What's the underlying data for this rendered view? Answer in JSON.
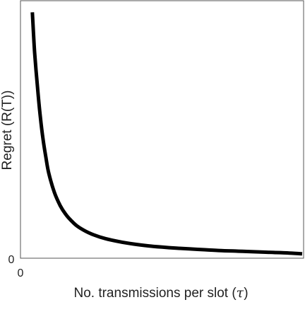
{
  "chart_data": {
    "type": "line",
    "xlabel_prefix": "No. transmissions per slot (",
    "xlabel_symbol": "τ",
    "xlabel_suffix": ")",
    "ylabel": "Regret (R(T))",
    "x_tick_labels": [
      "0"
    ],
    "y_tick_labels": [
      "0"
    ],
    "xlim": [
      0,
      1
    ],
    "ylim": [
      0,
      1
    ],
    "grid": false,
    "series": [
      {
        "color": "#000000",
        "x": [
          0.042,
          0.05,
          0.06,
          0.07,
          0.08,
          0.09,
          0.1,
          0.12,
          0.14,
          0.16,
          0.18,
          0.2,
          0.23,
          0.26,
          0.3,
          0.35,
          0.4,
          0.45,
          0.5,
          0.55,
          0.6,
          0.65,
          0.7,
          0.75,
          0.8,
          0.85,
          0.9,
          0.95,
          0.995
        ],
        "y": [
          0.955,
          0.8,
          0.665,
          0.55,
          0.46,
          0.39,
          0.33,
          0.255,
          0.205,
          0.17,
          0.145,
          0.125,
          0.105,
          0.09,
          0.076,
          0.064,
          0.055,
          0.048,
          0.043,
          0.039,
          0.036,
          0.033,
          0.03,
          0.028,
          0.026,
          0.024,
          0.022,
          0.02,
          0.017
        ]
      }
    ]
  }
}
